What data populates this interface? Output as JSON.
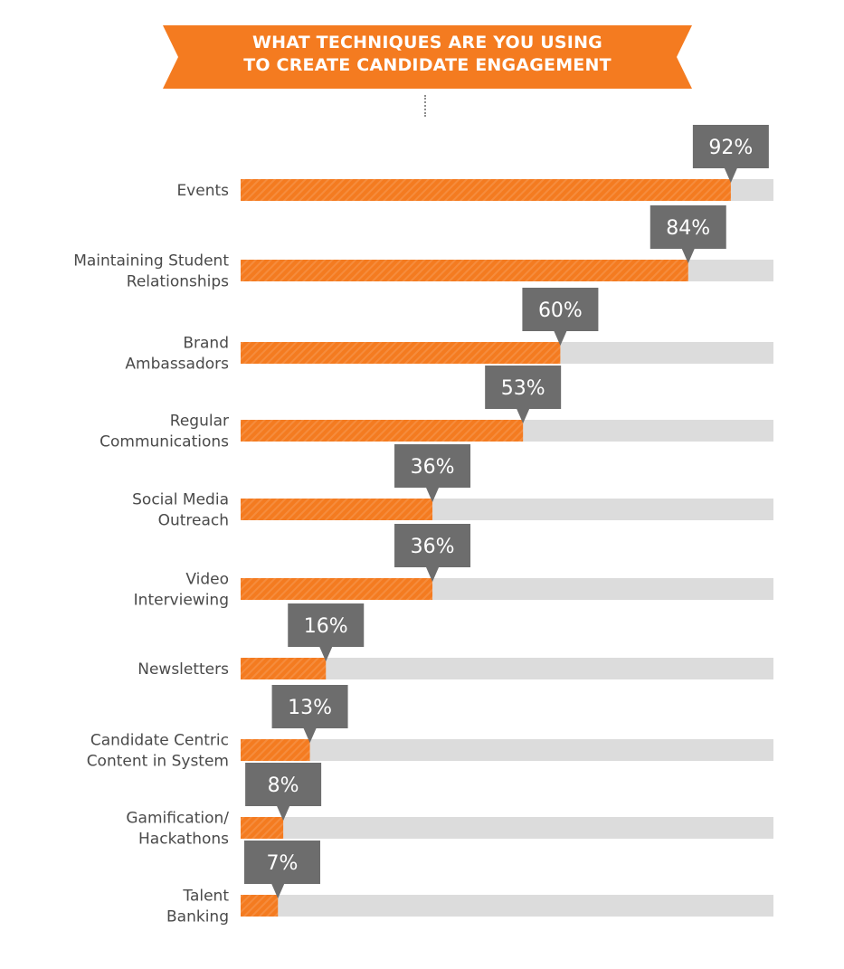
{
  "banner": {
    "title_line1": "WHAT TECHNIQUES ARE YOU USING",
    "title_line2": "TO  CREATE CANDIDATE ENGAGEMENT"
  },
  "colors": {
    "banner": "#f47b20",
    "bar_fill": "#f47b20",
    "bar_track": "#dcdcdc",
    "callout": "#6d6d6d",
    "label_text": "#4a4a4a"
  },
  "chart_data": {
    "type": "bar",
    "orientation": "horizontal",
    "title": "WHAT TECHNIQUES ARE YOU USING TO CREATE CANDIDATE ENGAGEMENT",
    "xlim": [
      0,
      100
    ],
    "unit": "%",
    "categories": [
      [
        "Events"
      ],
      [
        "Maintaining Student",
        "Relationships"
      ],
      [
        "Brand",
        "Ambassadors"
      ],
      [
        "Regular",
        "Communications"
      ],
      [
        "Social Media",
        "Outreach"
      ],
      [
        "Video",
        "Interviewing"
      ],
      [
        "Newsletters"
      ],
      [
        "Candidate Centric",
        "Content in System"
      ],
      [
        "Gamification/",
        "Hackathons"
      ],
      [
        "Talent",
        "Banking"
      ]
    ],
    "values": [
      92,
      84,
      60,
      53,
      36,
      36,
      16,
      13,
      8,
      7
    ],
    "value_labels": [
      "92%",
      "84%",
      "60%",
      "53%",
      "36%",
      "36%",
      "16%",
      "13%",
      "8%",
      "7%"
    ]
  }
}
